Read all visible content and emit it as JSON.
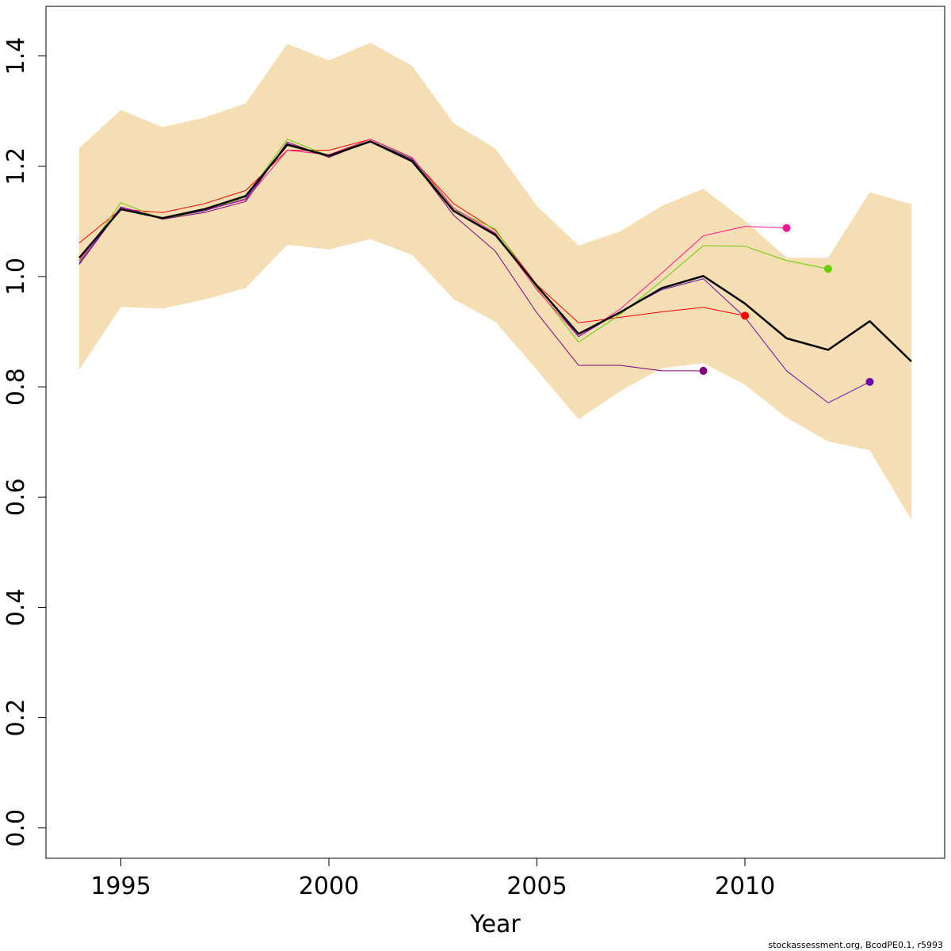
{
  "chart_data": {
    "type": "line",
    "title": "",
    "xlabel": "Year",
    "ylabel": "",
    "xlim": [
      1993.2,
      2014.8
    ],
    "ylim": [
      -0.055,
      1.49
    ],
    "x_ticks": [
      1995,
      2000,
      2005,
      2010
    ],
    "y_ticks": [
      0.0,
      0.2,
      0.4,
      0.6,
      0.8,
      1.0,
      1.2,
      1.4
    ],
    "x_tick_labels": [
      "1995",
      "2000",
      "2005",
      "2010"
    ],
    "y_tick_labels": [
      "0.0",
      "0.2",
      "0.4",
      "0.6",
      "0.8",
      "1.0",
      "1.2",
      "1.4"
    ],
    "grid": false,
    "legend": "none",
    "band": {
      "color": "#f5deb3",
      "x": [
        1994,
        1995,
        1996,
        1997,
        1998,
        1999,
        2000,
        2001,
        2002,
        2003,
        2004,
        2005,
        2006,
        2007,
        2008,
        2009,
        2010,
        2011,
        2012,
        2013,
        2014
      ],
      "upper": [
        1.233,
        1.302,
        1.271,
        1.288,
        1.314,
        1.422,
        1.392,
        1.424,
        1.382,
        1.278,
        1.232,
        1.128,
        1.056,
        1.082,
        1.128,
        1.159,
        1.101,
        1.034,
        1.034,
        1.153,
        1.131
      ],
      "lower": [
        0.831,
        0.945,
        0.942,
        0.958,
        0.979,
        1.058,
        1.049,
        1.068,
        1.039,
        0.959,
        0.918,
        0.831,
        0.741,
        0.792,
        0.834,
        0.843,
        0.804,
        0.744,
        0.701,
        0.685,
        0.559
      ]
    },
    "series": [
      {
        "color": "#000000",
        "width": 2.5,
        "endpoint": false,
        "x": [
          1994,
          1995,
          1996,
          1997,
          1998,
          1999,
          2000,
          2001,
          2002,
          2003,
          2004,
          2005,
          2006,
          2007,
          2008,
          2009,
          2010,
          2011,
          2012,
          2013,
          2014
        ],
        "y": [
          1.034,
          1.122,
          1.106,
          1.122,
          1.146,
          1.239,
          1.219,
          1.245,
          1.209,
          1.119,
          1.076,
          0.983,
          0.896,
          0.935,
          0.979,
          1.001,
          0.951,
          0.888,
          0.867,
          0.919,
          0.846
        ]
      },
      {
        "color": "#ff0000",
        "width": 1,
        "endpoint": true,
        "x": [
          1994,
          1995,
          1996,
          1997,
          1998,
          1999,
          2000,
          2001,
          2002,
          2003,
          2004,
          2005,
          2006,
          2007,
          2008,
          2009,
          2010
        ],
        "y": [
          1.061,
          1.122,
          1.116,
          1.132,
          1.156,
          1.229,
          1.229,
          1.249,
          1.214,
          1.132,
          1.084,
          0.985,
          0.916,
          0.926,
          0.936,
          0.944,
          0.929
        ]
      },
      {
        "color": "#66cc00",
        "width": 1,
        "endpoint": true,
        "x": [
          1994,
          1995,
          1996,
          1997,
          1998,
          1999,
          2000,
          2001,
          2002,
          2003,
          2004,
          2005,
          2006,
          2007,
          2008,
          2009,
          2010,
          2011,
          2012
        ],
        "y": [
          1.026,
          1.134,
          1.104,
          1.119,
          1.144,
          1.249,
          1.219,
          1.249,
          1.214,
          1.121,
          1.086,
          0.979,
          0.881,
          0.931,
          0.992,
          1.056,
          1.055,
          1.029,
          1.014
        ]
      },
      {
        "color": "#ff1493",
        "width": 1,
        "endpoint": true,
        "x": [
          1994,
          1995,
          1996,
          1997,
          1998,
          1999,
          2000,
          2001,
          2002,
          2003,
          2004,
          2005,
          2006,
          2007,
          2008,
          2009,
          2010,
          2011
        ],
        "y": [
          1.029,
          1.126,
          1.106,
          1.121,
          1.139,
          1.229,
          1.221,
          1.249,
          1.216,
          1.124,
          1.079,
          0.976,
          0.891,
          0.941,
          1.006,
          1.074,
          1.091,
          1.088
        ]
      },
      {
        "color": "#800080",
        "width": 1,
        "endpoint": true,
        "x": [
          1994,
          1995,
          1996,
          1997,
          1998,
          1999,
          2000,
          2001,
          2002,
          2003,
          2004,
          2005,
          2006,
          2007,
          2008,
          2009
        ],
        "y": [
          1.022,
          1.124,
          1.104,
          1.116,
          1.136,
          1.244,
          1.216,
          1.246,
          1.211,
          1.111,
          1.046,
          0.934,
          0.839,
          0.839,
          0.829,
          0.829
        ]
      },
      {
        "color": "#6a0dad",
        "width": 1,
        "endpoint": true,
        "x": [
          1994,
          1995,
          1996,
          1997,
          1998,
          1999,
          2000,
          2001,
          2002,
          2003,
          2004,
          2005,
          2006,
          2007,
          2008,
          2009,
          2010,
          2011,
          2012,
          2013
        ],
        "y": [
          1.024,
          1.126,
          1.106,
          1.119,
          1.141,
          1.241,
          1.219,
          1.246,
          1.213,
          1.118,
          1.074,
          0.984,
          0.891,
          0.936,
          0.976,
          0.996,
          0.926,
          0.829,
          0.771,
          0.809
        ]
      }
    ]
  },
  "footer": {
    "credit": "stockassessment.org, BcodPE0.1, r5993"
  }
}
